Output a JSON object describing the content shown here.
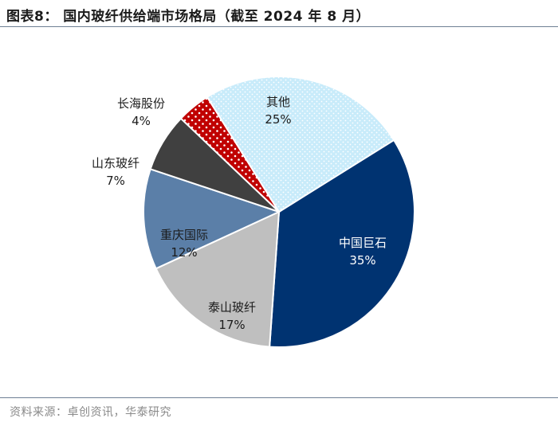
{
  "title": "图表8： 国内玻纤供给端市场格局（截至 2024 年 8 月）",
  "source": "资料来源：卓创资讯，华泰研究",
  "chart_data": {
    "type": "pie",
    "unit": "%",
    "slices": [
      {
        "name": "中国巨石",
        "value": 35,
        "label": "35%",
        "color": "#003371",
        "label_color": "#ffffff"
      },
      {
        "name": "泰山玻纤",
        "value": 17,
        "label": "17%",
        "color": "#bfbfbf",
        "label_color": "#1b1b1b"
      },
      {
        "name": "重庆国际",
        "value": 12,
        "label": "12%",
        "color": "#5b7fa8",
        "label_color": "#1b1b1b"
      },
      {
        "name": "山东玻纤",
        "value": 7,
        "label": "7%",
        "color": "#404040",
        "label_color": "#1b1b1b"
      },
      {
        "name": "长海股份",
        "value": 4,
        "label": "4%",
        "color": "#c00000",
        "label_color": "#1b1b1b",
        "pattern": "dots"
      },
      {
        "name": "其他",
        "value": 25,
        "label": "25%",
        "color": "#bfe6f8",
        "label_color": "#1b1b1b",
        "pattern": "dots-light"
      }
    ]
  }
}
